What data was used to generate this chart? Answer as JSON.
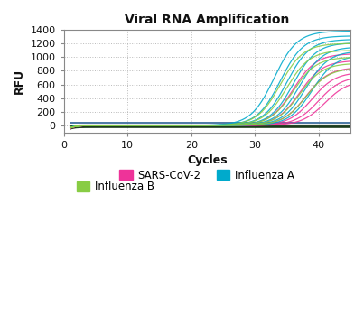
{
  "title": "Viral RNA Amplification",
  "xlabel": "Cycles",
  "ylabel": "RFU",
  "xlim": [
    0,
    45
  ],
  "ylim": [
    -100,
    1400
  ],
  "yticks": [
    0,
    200,
    400,
    600,
    800,
    1000,
    1200,
    1400
  ],
  "xticks": [
    0,
    10,
    20,
    30,
    40
  ],
  "background_color": "#ffffff",
  "grid_color": "#aaaaaa",
  "colors": {
    "sars": "#EE3399",
    "flu_a": "#00AACC",
    "flu_b": "#88CC44",
    "negative_blue": "#336699",
    "negative_dark": "#1a3a1a"
  },
  "n_cycles": 45,
  "sars_lines": {
    "n_lines": 6,
    "midpoints": [
      36,
      37,
      38,
      39,
      40,
      41
    ],
    "max_vals": [
      1050,
      950,
      850,
      780,
      720,
      660
    ],
    "k": 0.55
  },
  "flu_a_lines": {
    "n_lines": 7,
    "midpoints": [
      33,
      34,
      35,
      36,
      37,
      38,
      39
    ],
    "max_vals": [
      1380,
      1310,
      1260,
      1210,
      1150,
      1090,
      1030
    ],
    "k": 0.55
  },
  "flu_b_lines": {
    "n_lines": 5,
    "midpoints": [
      34,
      35,
      36,
      37,
      38
    ],
    "max_vals": [
      1200,
      1100,
      1000,
      910,
      840
    ],
    "k": 0.55
  },
  "neg_blue_level": 45,
  "neg_dark_lines": 6,
  "neg_dark_levels": [
    -5,
    -10,
    -15,
    -20,
    -25,
    -30
  ]
}
